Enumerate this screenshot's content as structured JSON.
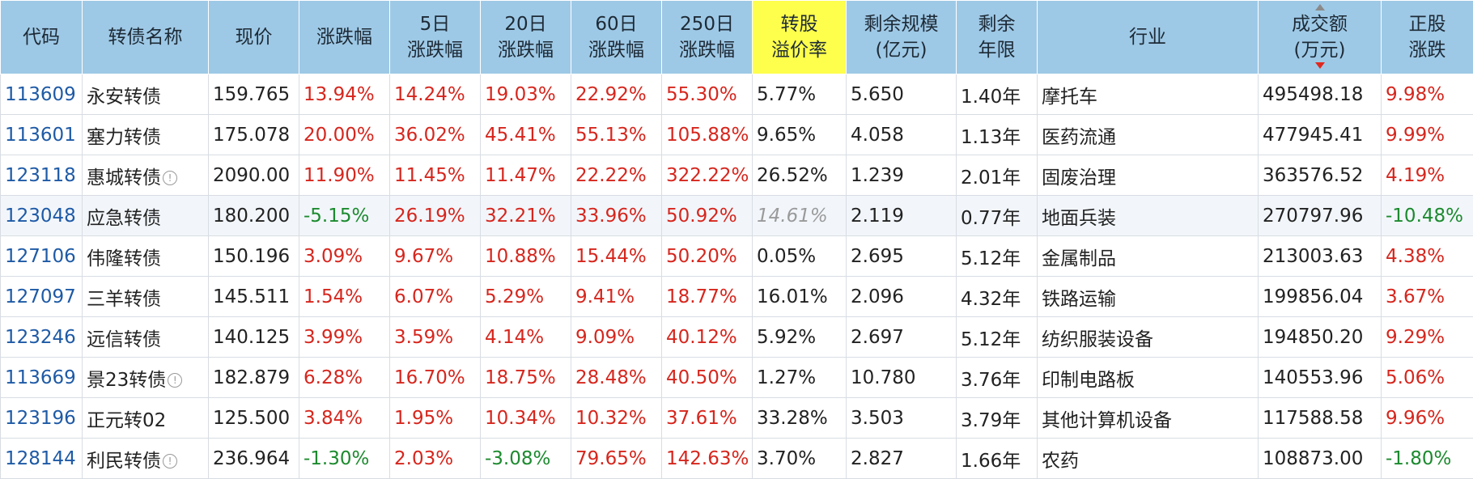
{
  "headers": [
    [
      "代码"
    ],
    [
      "转债名称"
    ],
    [
      "现价"
    ],
    [
      "涨跌幅"
    ],
    [
      "5日",
      "涨跌幅"
    ],
    [
      "20日",
      "涨跌幅"
    ],
    [
      "60日",
      "涨跌幅"
    ],
    [
      "250日",
      "涨跌幅"
    ],
    [
      "转股",
      "溢价率"
    ],
    [
      "剩余规模",
      "(亿元)"
    ],
    [
      "剩余",
      "年限"
    ],
    [
      "行业"
    ],
    [
      "成交额",
      "(万元)"
    ],
    [
      "正股",
      "涨跌"
    ]
  ],
  "rows": [
    {
      "code": "113609",
      "name": "永安转债",
      "info": false,
      "price": "159.765",
      "chg": "13.94%",
      "chg5": "14.24%",
      "chg20": "19.03%",
      "chg60": "22.92%",
      "chg250": "55.30%",
      "premium": "5.77%",
      "scale": "5.650",
      "years": "1.40年",
      "industry": "摩托车",
      "turnover": "495498.18",
      "stock_chg": "9.98%"
    },
    {
      "code": "113601",
      "name": "塞力转债",
      "info": false,
      "price": "175.078",
      "chg": "20.00%",
      "chg5": "36.02%",
      "chg20": "45.41%",
      "chg60": "55.13%",
      "chg250": "105.88%",
      "premium": "9.65%",
      "scale": "4.058",
      "years": "1.13年",
      "industry": "医药流通",
      "turnover": "477945.41",
      "stock_chg": "9.99%"
    },
    {
      "code": "123118",
      "name": "惠城转债",
      "info": true,
      "price": "2090.00",
      "chg": "11.90%",
      "chg5": "11.45%",
      "chg20": "11.47%",
      "chg60": "22.22%",
      "chg250": "322.22%",
      "premium": "26.52%",
      "scale": "1.239",
      "years": "2.01年",
      "industry": "固废治理",
      "turnover": "363576.52",
      "stock_chg": "4.19%"
    },
    {
      "code": "123048",
      "name": "应急转债",
      "info": false,
      "price": "180.200",
      "chg": "-5.15%",
      "chg5": "26.19%",
      "chg20": "32.21%",
      "chg60": "33.96%",
      "chg250": "50.92%",
      "premium": "14.61%",
      "scale": "2.119",
      "years": "0.77年",
      "industry": "地面兵装",
      "turnover": "270797.96",
      "stock_chg": "-10.48%"
    },
    {
      "code": "127106",
      "name": "伟隆转债",
      "info": false,
      "price": "150.196",
      "chg": "3.09%",
      "chg5": "9.67%",
      "chg20": "10.88%",
      "chg60": "15.44%",
      "chg250": "50.20%",
      "premium": "0.05%",
      "scale": "2.695",
      "years": "5.12年",
      "industry": "金属制品",
      "turnover": "213003.63",
      "stock_chg": "4.38%"
    },
    {
      "code": "127097",
      "name": "三羊转债",
      "info": false,
      "price": "145.511",
      "chg": "1.54%",
      "chg5": "6.07%",
      "chg20": "5.29%",
      "chg60": "9.41%",
      "chg250": "18.77%",
      "premium": "16.01%",
      "scale": "2.096",
      "years": "4.32年",
      "industry": "铁路运输",
      "turnover": "199856.04",
      "stock_chg": "3.67%"
    },
    {
      "code": "123246",
      "name": "远信转债",
      "info": false,
      "price": "140.125",
      "chg": "3.99%",
      "chg5": "3.59%",
      "chg20": "4.14%",
      "chg60": "9.09%",
      "chg250": "40.12%",
      "premium": "5.92%",
      "scale": "2.697",
      "years": "5.12年",
      "industry": "纺织服装设备",
      "turnover": "194850.20",
      "stock_chg": "9.29%"
    },
    {
      "code": "113669",
      "name": "景23转债",
      "info": true,
      "price": "182.879",
      "chg": "6.28%",
      "chg5": "16.70%",
      "chg20": "18.75%",
      "chg60": "28.48%",
      "chg250": "40.50%",
      "premium": "1.27%",
      "scale": "10.780",
      "years": "3.76年",
      "industry": "印制电路板",
      "turnover": "140553.96",
      "stock_chg": "5.06%"
    },
    {
      "code": "123196",
      "name": "正元转02",
      "info": false,
      "price": "125.500",
      "chg": "3.84%",
      "chg5": "1.95%",
      "chg20": "10.34%",
      "chg60": "10.32%",
      "chg250": "37.61%",
      "premium": "33.28%",
      "scale": "3.503",
      "years": "3.79年",
      "industry": "其他计算机设备",
      "turnover": "117588.58",
      "stock_chg": "9.96%"
    },
    {
      "code": "128144",
      "name": "利民转债",
      "info": true,
      "price": "236.964",
      "chg": "-1.30%",
      "chg5": "2.03%",
      "chg20": "-3.08%",
      "chg60": "79.65%",
      "chg250": "142.63%",
      "premium": "3.70%",
      "scale": "2.827",
      "years": "1.66年",
      "industry": "农药",
      "turnover": "108873.00",
      "stock_chg": "-1.80%"
    }
  ],
  "muted_premium_rows": [
    3
  ],
  "highlight_column": 8,
  "sorted_column": 12,
  "info_icon_glyph": "!",
  "colors": {
    "header_bg": "#9ec9e6",
    "highlight_bg": "#fefe4c",
    "up": "#d6261d",
    "down": "#1c8a2e",
    "code_link": "#1e5aa6"
  }
}
